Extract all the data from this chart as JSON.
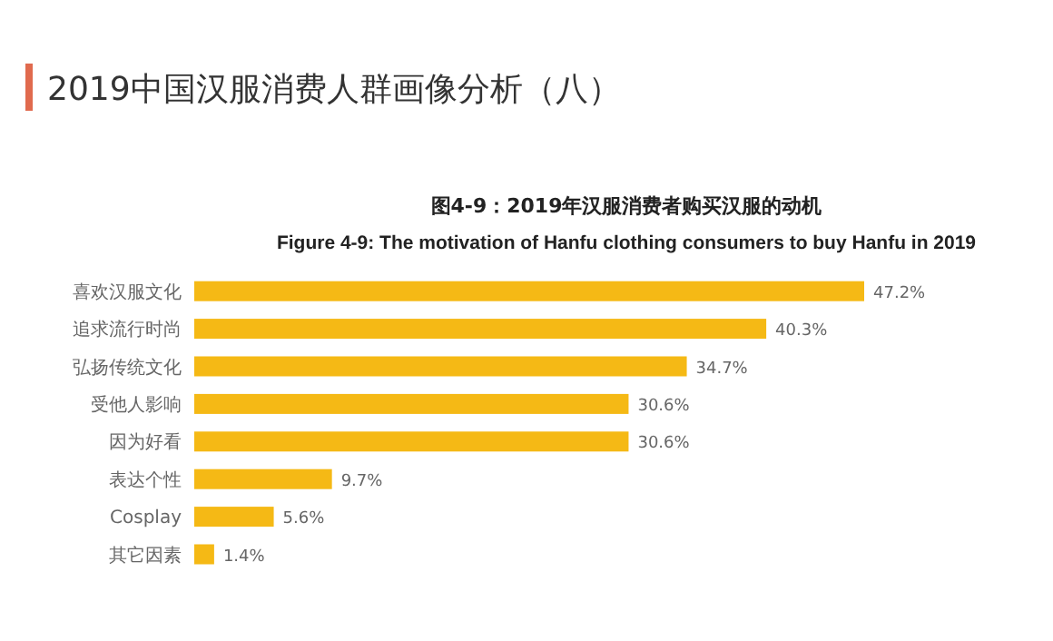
{
  "chart_data": {
    "type": "bar",
    "orientation": "horizontal",
    "title": "2019中国汉服消费人群画像分析（八）",
    "subtitle": "图4-9：2019年汉服消费者购买汉服的动机",
    "annotations": [
      "Figure 4-9: The motivation of Hanfu clothing consumers to buy Hanfu in 2019"
    ],
    "categories": [
      "喜欢汉服文化",
      "追求流行时尚",
      "弘扬传统文化",
      "受他人影响",
      "因为好看",
      "表达个性",
      "Cosplay",
      "其它因素"
    ],
    "values": [
      47.2,
      40.3,
      34.7,
      30.6,
      30.6,
      9.7,
      5.6,
      1.4
    ],
    "value_labels": [
      "47.2%",
      "40.3%",
      "34.7%",
      "30.6%",
      "30.6%",
      "9.7%",
      "5.6%",
      "1.4%"
    ],
    "color": "#f5b915"
  }
}
